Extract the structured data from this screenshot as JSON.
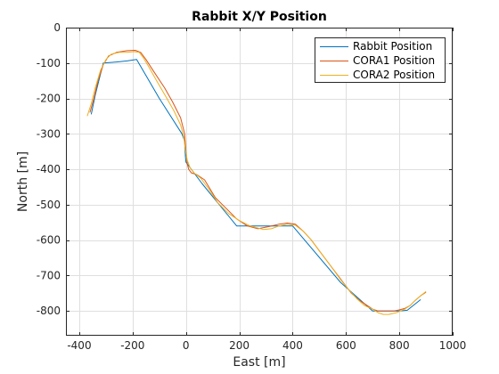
{
  "chart_data": {
    "type": "line",
    "title": "Rabbit X/Y Position",
    "xlabel": "East [m]",
    "ylabel": "North [m]",
    "xlim": [
      -450,
      1000
    ],
    "ylim": [
      -870,
      0
    ],
    "xticks": [
      -400,
      -200,
      0,
      200,
      400,
      600,
      800,
      1000
    ],
    "yticks": [
      0,
      -100,
      -200,
      -300,
      -400,
      -500,
      -600,
      -700,
      -800
    ],
    "xtick_labels": [
      "-400",
      "-200",
      "0",
      "200",
      "400",
      "600",
      "800",
      "1000"
    ],
    "ytick_labels": [
      "0",
      "-100",
      "-200",
      "-300",
      "-400",
      "-500",
      "-600",
      "-700",
      "-800"
    ],
    "grid": true,
    "legend_position": "top-right",
    "series": [
      {
        "name": "Rabbit Position",
        "color": "#0072BD",
        "x": [
          -355,
          -340,
          -310,
          -260,
          -220,
          -185,
          -100,
          -15,
          -5,
          -2,
          0,
          60,
          190,
          225,
          400,
          580,
          700,
          720,
          750,
          800,
          830,
          880
        ],
        "y": [
          -245,
          -190,
          -100,
          -97,
          -94,
          -90,
          -200,
          -300,
          -320,
          -365,
          -380,
          -440,
          -560,
          -560,
          -560,
          -720,
          -800,
          -800,
          -800,
          -800,
          -798,
          -768
        ]
      },
      {
        "name": "CORA1 Position",
        "color": "#D95319",
        "x": [
          -360,
          -345,
          -330,
          -310,
          -290,
          -260,
          -220,
          -190,
          -170,
          -150,
          -120,
          -80,
          -50,
          -20,
          -5,
          0,
          5,
          10,
          20,
          40,
          70,
          110,
          150,
          190,
          230,
          270,
          310,
          350,
          380,
          410,
          440,
          470,
          500,
          540,
          580,
          620,
          650,
          680,
          700,
          720,
          740,
          760,
          780,
          800,
          820,
          840,
          860,
          880,
          900
        ],
        "y": [
          -240,
          -200,
          -150,
          -105,
          -80,
          -70,
          -65,
          -64,
          -70,
          -90,
          -125,
          -170,
          -210,
          -255,
          -300,
          -350,
          -385,
          -400,
          -410,
          -415,
          -430,
          -480,
          -510,
          -540,
          -560,
          -568,
          -562,
          -555,
          -552,
          -555,
          -575,
          -600,
          -630,
          -670,
          -710,
          -750,
          -770,
          -785,
          -795,
          -800,
          -800,
          -800,
          -800,
          -797,
          -793,
          -785,
          -770,
          -757,
          -747
        ]
      },
      {
        "name": "CORA2 Position",
        "color": "#EDB120",
        "x": [
          -370,
          -355,
          -340,
          -320,
          -300,
          -280,
          -250,
          -220,
          -195,
          -175,
          -160,
          -140,
          -110,
          -75,
          -45,
          -20,
          -8,
          -2,
          5,
          15,
          30,
          55,
          85,
          120,
          160,
          200,
          240,
          290,
          320,
          350,
          380,
          410,
          440,
          470,
          500,
          540,
          580,
          610,
          640,
          670,
          700,
          720,
          740,
          760,
          790,
          820,
          840,
          860,
          880,
          900
        ],
        "y": [
          -250,
          -215,
          -170,
          -120,
          -90,
          -75,
          -70,
          -70,
          -68,
          -70,
          -85,
          -110,
          -150,
          -195,
          -235,
          -275,
          -310,
          -345,
          -375,
          -395,
          -410,
          -425,
          -455,
          -495,
          -525,
          -545,
          -560,
          -570,
          -568,
          -560,
          -555,
          -558,
          -575,
          -600,
          -630,
          -670,
          -712,
          -740,
          -765,
          -785,
          -795,
          -805,
          -810,
          -810,
          -805,
          -795,
          -785,
          -770,
          -757,
          -745
        ]
      }
    ]
  }
}
